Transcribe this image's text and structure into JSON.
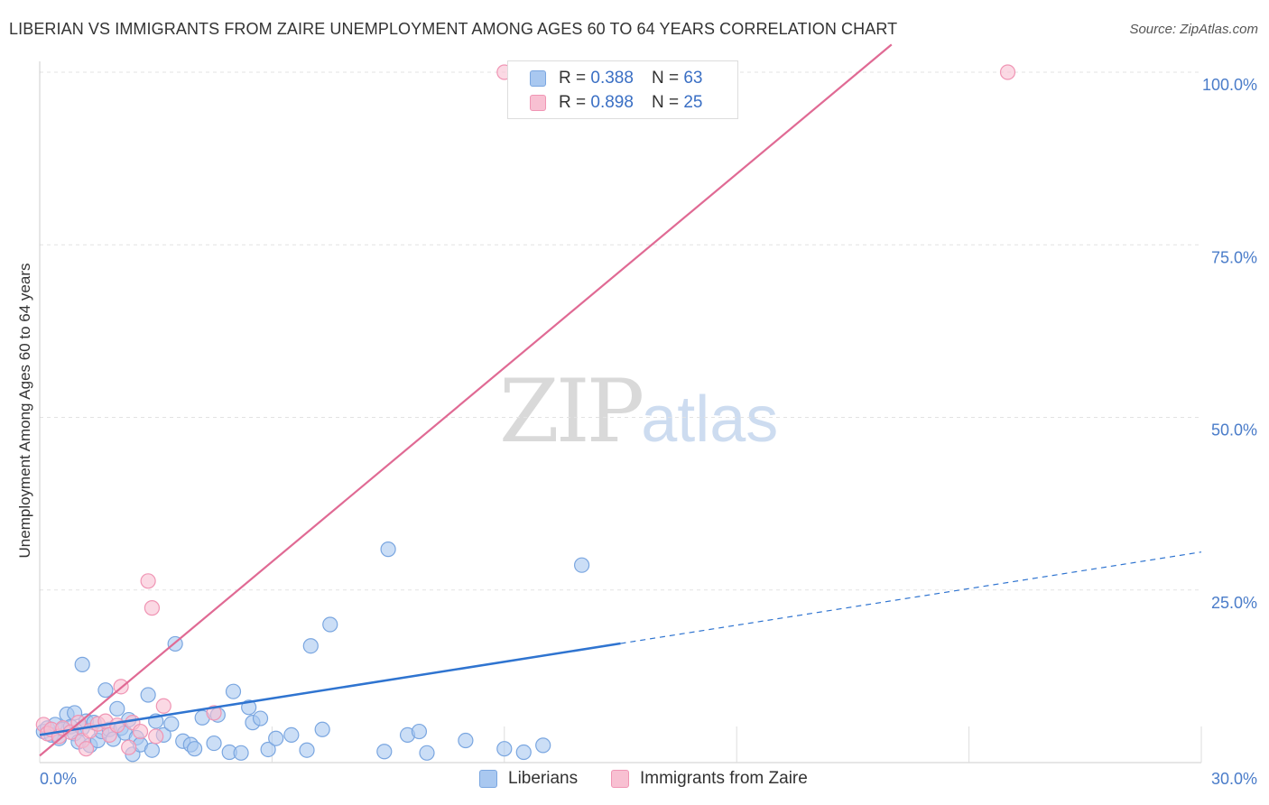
{
  "header": {
    "title": "LIBERIAN VS IMMIGRANTS FROM ZAIRE UNEMPLOYMENT AMONG AGES 60 TO 64 YEARS CORRELATION CHART",
    "source": "Source: ZipAtlas.com"
  },
  "watermark": {
    "zip": "ZIP",
    "atlas": "atlas"
  },
  "legend_top": {
    "rows": [
      {
        "r_label": "R =",
        "r_value": "0.388",
        "n_label": "N =",
        "n_value": "63"
      },
      {
        "r_label": "R =",
        "r_value": "0.898",
        "n_label": "N =",
        "n_value": "25"
      }
    ]
  },
  "legend_bottom": {
    "series1": "Liberians",
    "series2": "Immigrants from Zaire"
  },
  "colors": {
    "blue_fill": "#a9c8f0",
    "blue_stroke": "#7aa6e0",
    "blue_line": "#2f74d0",
    "pink_fill": "#f8c0d2",
    "pink_stroke": "#f095b4",
    "pink_line": "#e06a94",
    "tick": "#4a7cc9",
    "grid": "#e3e3e3"
  },
  "chart_data": {
    "type": "scatter",
    "title": "LIBERIAN VS IMMIGRANTS FROM ZAIRE UNEMPLOYMENT AMONG AGES 60 TO 64 YEARS CORRELATION CHART",
    "xlabel": "",
    "ylabel": "Unemployment Among Ages 60 to 64 years",
    "xlim": [
      0,
      30
    ],
    "ylim": [
      0,
      100
    ],
    "x_tick_labels": [
      "0.0%",
      "30.0%"
    ],
    "y_ticks": [
      25,
      50,
      75,
      100
    ],
    "y_tick_labels": [
      "25.0%",
      "50.0%",
      "75.0%",
      "100.0%"
    ],
    "grid": true,
    "series": [
      {
        "name": "Liberians",
        "color": "blue",
        "points": [
          [
            0.1,
            4.5
          ],
          [
            0.2,
            5.0
          ],
          [
            0.3,
            4.0
          ],
          [
            0.4,
            5.5
          ],
          [
            0.5,
            3.5
          ],
          [
            0.6,
            4.8
          ],
          [
            0.7,
            7.0
          ],
          [
            0.8,
            5.2
          ],
          [
            0.9,
            4.2
          ],
          [
            0.9,
            7.2
          ],
          [
            1.0,
            3.0
          ],
          [
            1.1,
            5.0
          ],
          [
            1.1,
            14.2
          ],
          [
            1.2,
            6.0
          ],
          [
            1.3,
            2.5
          ],
          [
            1.4,
            5.8
          ],
          [
            1.5,
            3.2
          ],
          [
            1.6,
            4.5
          ],
          [
            1.7,
            10.5
          ],
          [
            1.8,
            4.8
          ],
          [
            1.9,
            3.4
          ],
          [
            2.0,
            7.8
          ],
          [
            2.1,
            5.0
          ],
          [
            2.2,
            4.3
          ],
          [
            2.3,
            6.2
          ],
          [
            2.4,
            1.2
          ],
          [
            2.5,
            3.6
          ],
          [
            2.6,
            2.6
          ],
          [
            2.8,
            9.8
          ],
          [
            2.9,
            1.8
          ],
          [
            3.0,
            6.0
          ],
          [
            3.2,
            4.0
          ],
          [
            3.4,
            5.6
          ],
          [
            3.5,
            17.2
          ],
          [
            3.7,
            3.1
          ],
          [
            3.9,
            2.6
          ],
          [
            4.0,
            2.0
          ],
          [
            4.2,
            6.5
          ],
          [
            4.5,
            2.8
          ],
          [
            4.6,
            6.9
          ],
          [
            4.9,
            1.5
          ],
          [
            5.0,
            10.3
          ],
          [
            5.2,
            1.4
          ],
          [
            5.4,
            8.0
          ],
          [
            5.5,
            5.8
          ],
          [
            5.7,
            6.4
          ],
          [
            5.9,
            1.9
          ],
          [
            6.1,
            3.5
          ],
          [
            6.5,
            4.0
          ],
          [
            6.9,
            1.8
          ],
          [
            7.0,
            16.9
          ],
          [
            7.3,
            4.8
          ],
          [
            7.5,
            20.0
          ],
          [
            8.9,
            1.6
          ],
          [
            9.0,
            30.9
          ],
          [
            9.5,
            4.0
          ],
          [
            9.8,
            4.5
          ],
          [
            10.0,
            1.4
          ],
          [
            11.0,
            3.2
          ],
          [
            12.0,
            2.0
          ],
          [
            12.5,
            1.5
          ],
          [
            13.0,
            2.5
          ],
          [
            14.0,
            28.6
          ]
        ],
        "trend": {
          "x0": 0.0,
          "y0": 4.0,
          "x_solid_end": 15.0,
          "x1": 30.0,
          "y1": 30.5
        }
      },
      {
        "name": "Immigrants from Zaire",
        "color": "pink",
        "points": [
          [
            0.1,
            5.5
          ],
          [
            0.2,
            4.2
          ],
          [
            0.3,
            4.8
          ],
          [
            0.5,
            3.8
          ],
          [
            0.6,
            5.0
          ],
          [
            0.8,
            4.4
          ],
          [
            1.0,
            5.8
          ],
          [
            1.1,
            3.2
          ],
          [
            1.2,
            2.0
          ],
          [
            1.3,
            4.6
          ],
          [
            1.5,
            5.6
          ],
          [
            1.7,
            6.0
          ],
          [
            1.8,
            4.0
          ],
          [
            2.0,
            5.4
          ],
          [
            2.1,
            11.0
          ],
          [
            2.3,
            2.2
          ],
          [
            2.4,
            5.8
          ],
          [
            2.6,
            4.5
          ],
          [
            2.8,
            26.3
          ],
          [
            2.9,
            22.4
          ],
          [
            3.0,
            3.8
          ],
          [
            3.2,
            8.2
          ],
          [
            4.5,
            7.2
          ],
          [
            12.0,
            100.0
          ],
          [
            25.0,
            100.0
          ]
        ],
        "trend": {
          "x0": 0.0,
          "y0": 1.0,
          "x1": 22.0,
          "y1": 104.0
        }
      }
    ]
  }
}
